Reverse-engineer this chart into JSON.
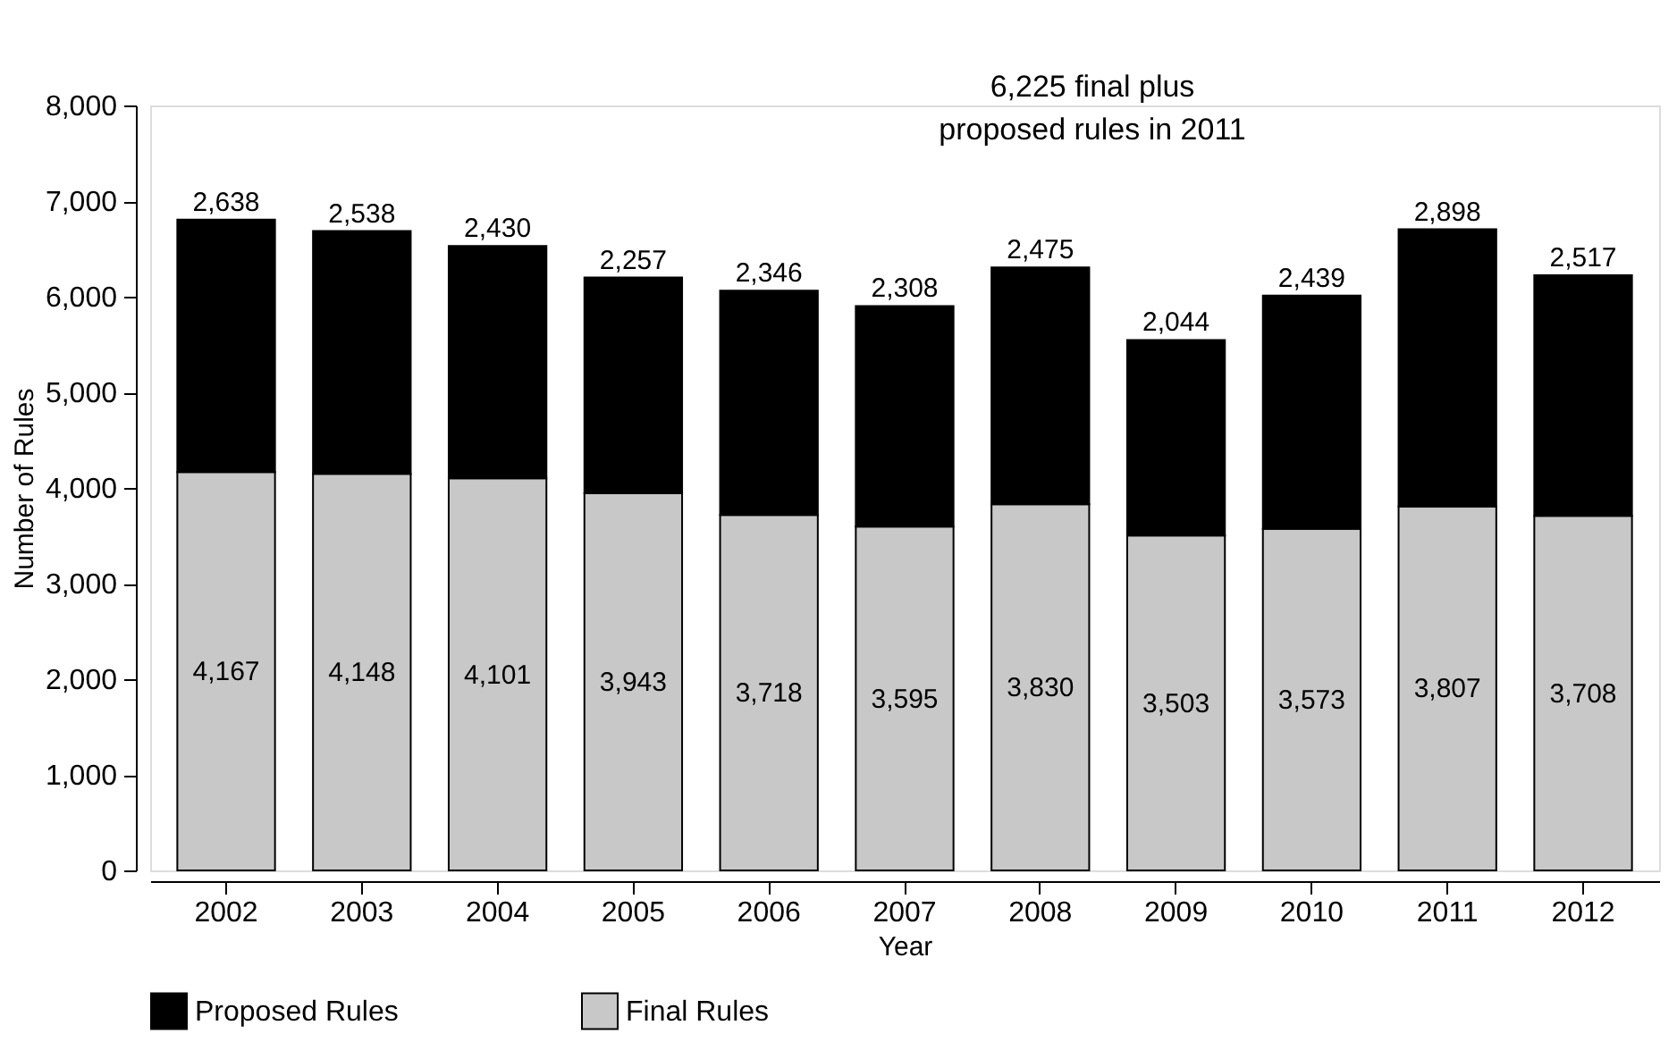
{
  "chart_data": {
    "type": "bar",
    "stacked": true,
    "xlabel": "Year",
    "ylabel": "Number of Rules",
    "categories": [
      "2002",
      "2003",
      "2004",
      "2005",
      "2006",
      "2007",
      "2008",
      "2009",
      "2010",
      "2011",
      "2012"
    ],
    "series": [
      {
        "name": "Final Rules",
        "color": "#c8c8c8",
        "values": [
          4167,
          4148,
          4101,
          3943,
          3718,
          3595,
          3830,
          3503,
          3573,
          3807,
          3708
        ],
        "value_labels": [
          "4,167",
          "4,148",
          "4,101",
          "3,943",
          "3,718",
          "3,595",
          "3,830",
          "3,503",
          "3,573",
          "3,807",
          "3,708"
        ]
      },
      {
        "name": "Proposed Rules",
        "color": "#000000",
        "values": [
          2638,
          2538,
          2430,
          2257,
          2346,
          2308,
          2475,
          2044,
          2439,
          2898,
          2517
        ],
        "value_labels": [
          "2,638",
          "2,538",
          "2,430",
          "2,257",
          "2,346",
          "2,308",
          "2,475",
          "2,044",
          "2,439",
          "2,898",
          "2,517"
        ]
      }
    ],
    "ylim": [
      0,
      8000
    ],
    "yticks": [
      0,
      {
        "value": 1000,
        "label": "1,000"
      },
      {
        "value": 2000,
        "label": "2,000"
      },
      {
        "value": 3000,
        "label": "3,000"
      },
      {
        "value": 4000,
        "label": "4,000"
      },
      {
        "value": 5000,
        "label": "5,000"
      },
      {
        "value": 6000,
        "label": "6,000"
      },
      {
        "value": 7000,
        "label": "7,000"
      },
      {
        "value": 8000,
        "label": "8,000"
      }
    ],
    "grid": false,
    "legend": "bottom",
    "annotations": [
      "6,225 final plus proposed rules in 2011"
    ]
  }
}
